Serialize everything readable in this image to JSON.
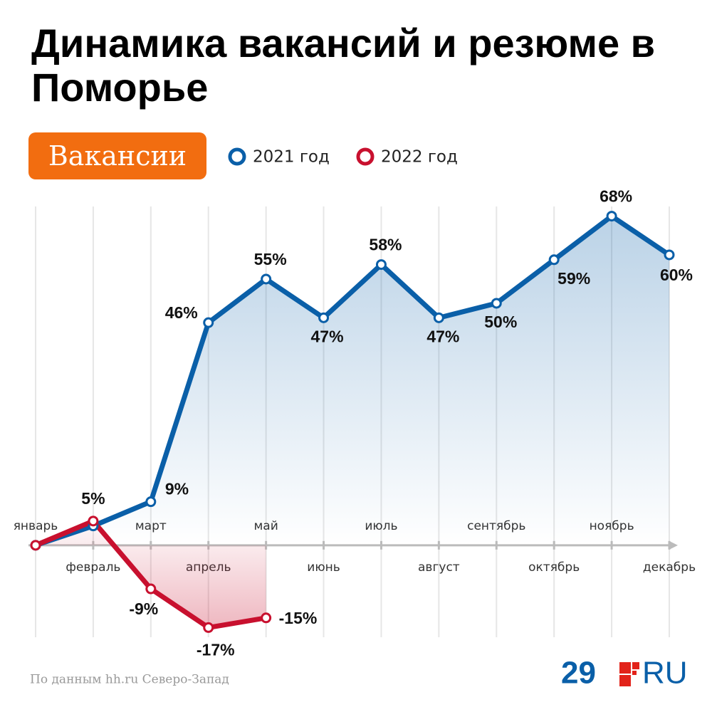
{
  "chart_data": {
    "type": "line",
    "title": "Динамика вакансий и резюме в Поморье",
    "badge": "Вакансии",
    "categories": [
      "январь",
      "февраль",
      "март",
      "апрель",
      "май",
      "июнь",
      "июль",
      "август",
      "сентябрь",
      "октябрь",
      "ноябрь",
      "декабрь"
    ],
    "series": [
      {
        "name": "2021 год",
        "color": "#0a5fa8",
        "values": [
          0,
          4,
          9,
          46,
          55,
          47,
          58,
          47,
          50,
          59,
          68,
          60
        ],
        "value_labels": [
          null,
          null,
          "9%",
          "46%",
          "55%",
          "47%",
          "58%",
          "47%",
          "50%",
          "59%",
          "68%",
          "60%"
        ]
      },
      {
        "name": "2022 год",
        "color": "#c8102e",
        "values": [
          0,
          5,
          -9,
          -17,
          -15,
          null,
          null,
          null,
          null,
          null,
          null,
          null
        ],
        "value_labels": [
          null,
          "5%",
          "-9%",
          "-17%",
          "-15%",
          null,
          null,
          null,
          null,
          null,
          null,
          null
        ]
      }
    ],
    "ylim": [
      -19,
      70
    ],
    "source": "По данным hh.ru Северо-Запад",
    "logo": [
      "29",
      "RU"
    ]
  }
}
